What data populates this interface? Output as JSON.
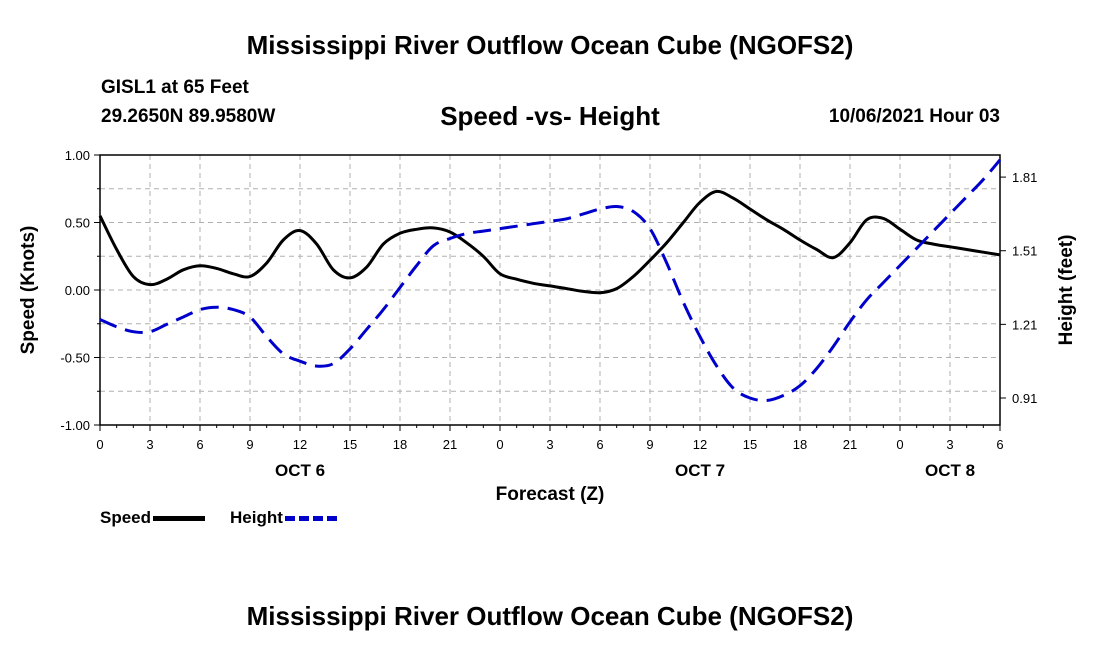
{
  "header": {
    "title": "Mississippi River Outflow Ocean Cube (NGOFS2)",
    "station": "GISL1 at 65 Feet",
    "coords": "29.2650N  89.9580W",
    "subtitle": "Speed -vs- Height",
    "datetime": "10/06/2021 Hour 03"
  },
  "footer": {
    "title": "Mississippi River Outflow Ocean Cube (NGOFS2)"
  },
  "legend": {
    "speed_label": "Speed",
    "height_label": "Height"
  },
  "chart_data": {
    "type": "line",
    "xlabel": "Forecast (Z)",
    "ylabel": "Speed (Knots)",
    "y2label": "Height (feet)",
    "xlim": [
      0,
      54
    ],
    "ylim": [
      -1.0,
      1.0
    ],
    "y2lim": [
      0.8,
      1.9
    ],
    "x_ticks": [
      0,
      3,
      6,
      9,
      12,
      15,
      18,
      21,
      24,
      27,
      30,
      33,
      36,
      39,
      42,
      45,
      48,
      51,
      54
    ],
    "x_tick_labels": [
      "0",
      "3",
      "6",
      "9",
      "12",
      "15",
      "18",
      "21",
      "0",
      "3",
      "6",
      "9",
      "12",
      "15",
      "18",
      "21",
      "0",
      "3",
      "6"
    ],
    "y_ticks": [
      1.0,
      0.5,
      0.0,
      -0.5,
      -1.0
    ],
    "y_tick_labels": [
      "1.00",
      "0.50",
      "0.00",
      "-0.50",
      "-1.00"
    ],
    "y2_ticks": [
      1.81,
      1.51,
      1.21,
      0.91
    ],
    "y2_tick_labels": [
      "1.81",
      "1.51",
      "1.21",
      "0.91"
    ],
    "day_labels": [
      {
        "x": 12,
        "label": "OCT 6"
      },
      {
        "x": 36,
        "label": "OCT 7"
      },
      {
        "x": 51,
        "label": "OCT 8"
      }
    ],
    "grid": true,
    "series": [
      {
        "name": "Speed",
        "axis": "left",
        "color": "#000000",
        "style": "solid",
        "x": [
          0,
          1,
          2,
          3,
          4,
          5,
          6,
          7,
          8,
          9,
          10,
          11,
          12,
          13,
          14,
          15,
          16,
          17,
          18,
          19,
          20,
          21,
          22,
          23,
          24,
          25,
          26,
          27,
          28,
          29,
          30,
          31,
          32,
          33,
          34,
          35,
          36,
          37,
          38,
          39,
          40,
          41,
          42,
          43,
          44,
          45,
          46,
          47,
          48,
          49,
          50,
          51,
          52,
          53,
          54
        ],
        "values": [
          0.55,
          0.3,
          0.1,
          0.04,
          0.08,
          0.15,
          0.18,
          0.16,
          0.12,
          0.1,
          0.2,
          0.37,
          0.44,
          0.34,
          0.15,
          0.09,
          0.17,
          0.34,
          0.42,
          0.45,
          0.46,
          0.43,
          0.35,
          0.25,
          0.12,
          0.08,
          0.05,
          0.03,
          0.01,
          -0.01,
          -0.02,
          0.01,
          0.1,
          0.22,
          0.35,
          0.5,
          0.65,
          0.73,
          0.68,
          0.6,
          0.52,
          0.45,
          0.37,
          0.3,
          0.24,
          0.35,
          0.52,
          0.53,
          0.45,
          0.37,
          0.34,
          0.32,
          0.3,
          0.28,
          0.26
        ]
      },
      {
        "name": "Height",
        "axis": "right",
        "color": "#0000cc",
        "style": "dashed",
        "x": [
          0,
          1,
          2,
          3,
          4,
          5,
          6,
          7,
          8,
          9,
          10,
          11,
          12,
          13,
          14,
          15,
          16,
          17,
          18,
          19,
          20,
          21,
          22,
          23,
          24,
          25,
          26,
          27,
          28,
          29,
          30,
          31,
          32,
          33,
          34,
          35,
          36,
          37,
          38,
          39,
          40,
          41,
          42,
          43,
          44,
          45,
          46,
          47,
          48,
          49,
          50,
          51,
          52,
          53,
          54
        ],
        "values": [
          1.23,
          1.2,
          1.18,
          1.18,
          1.21,
          1.24,
          1.27,
          1.28,
          1.27,
          1.24,
          1.16,
          1.09,
          1.06,
          1.04,
          1.05,
          1.11,
          1.19,
          1.27,
          1.36,
          1.45,
          1.53,
          1.56,
          1.58,
          1.59,
          1.6,
          1.61,
          1.62,
          1.63,
          1.64,
          1.66,
          1.68,
          1.69,
          1.67,
          1.6,
          1.46,
          1.3,
          1.16,
          1.04,
          0.95,
          0.91,
          0.9,
          0.92,
          0.96,
          1.03,
          1.12,
          1.22,
          1.31,
          1.38,
          1.45,
          1.52,
          1.59,
          1.66,
          1.73,
          1.8,
          1.88
        ]
      }
    ]
  }
}
